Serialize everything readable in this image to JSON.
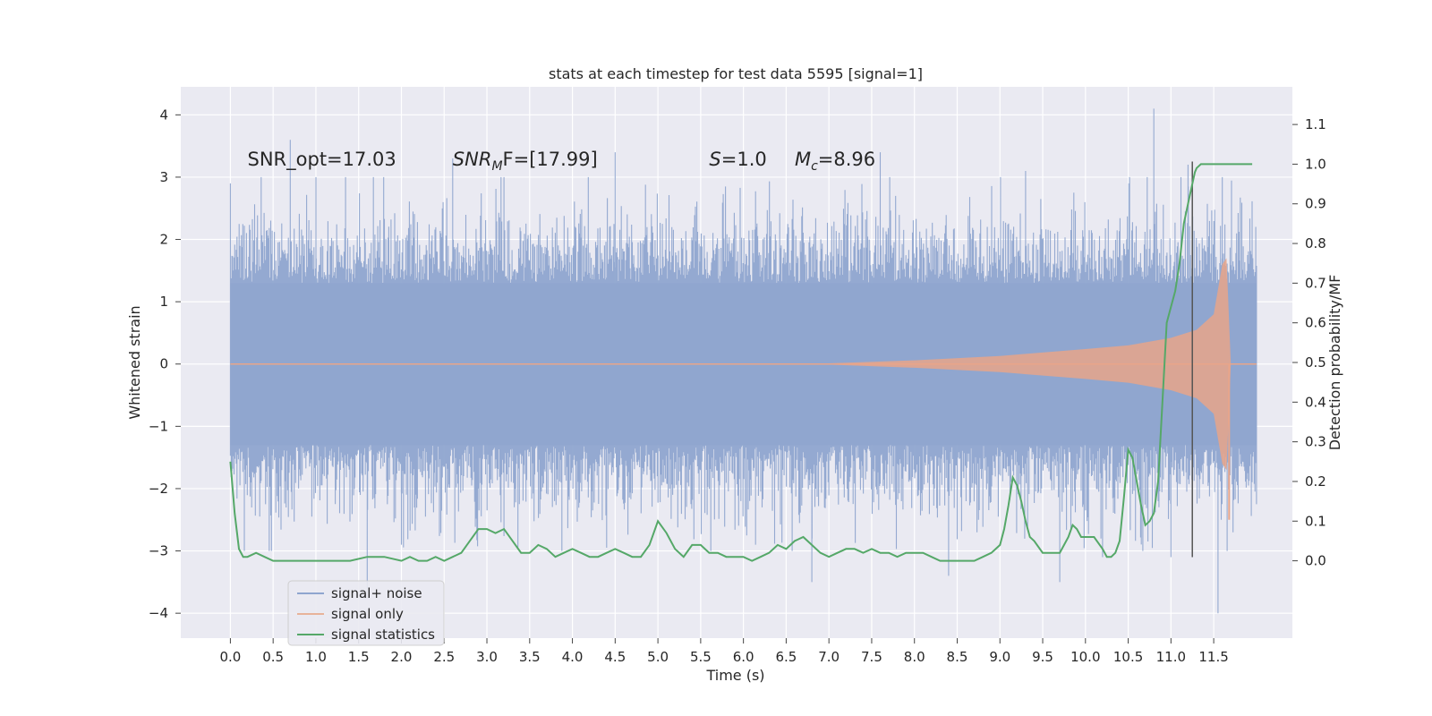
{
  "chart_data": {
    "type": "line",
    "title": "stats at each timestep for test data 5595 [signal=1]",
    "xlabel": "Time (s)",
    "ylabel_left": "Whitened strain",
    "ylabel_right": "Detection probability/MF",
    "xlim": [
      -0.58,
      12.42
    ],
    "ylim_left": [
      -4.4,
      4.45
    ],
    "ylim_right": [
      -0.195,
      1.195
    ],
    "xticks": [
      "0.0",
      "0.5",
      "1.0",
      "1.5",
      "2.0",
      "2.5",
      "3.0",
      "3.5",
      "4.0",
      "4.5",
      "5.0",
      "5.5",
      "6.0",
      "6.5",
      "7.0",
      "7.5",
      "8.0",
      "8.5",
      "9.0",
      "9.5",
      "10.0",
      "10.5",
      "11.0",
      "11.5"
    ],
    "yticks_left": [
      "4",
      "3",
      "2",
      "1",
      "0",
      "−1",
      "−2",
      "−3",
      "−4"
    ],
    "yticks_right": [
      "1.1",
      "1.0",
      "0.9",
      "0.8",
      "0.7",
      "0.6",
      "0.5",
      "0.4",
      "0.3",
      "0.2",
      "0.1",
      "0.0"
    ],
    "colors": {
      "noise": "#8fa5cf",
      "signal": "#dd8452",
      "stats": "#55a868",
      "marker": "#555555",
      "bg": "#eaeaf2",
      "grid": "#ffffff"
    },
    "annotations": [
      {
        "label": "SNR_opt=17.03",
        "x": 0.2,
        "y": 3.3
      },
      {
        "prefix": "SNR",
        "sub": "M",
        "suffix": "F=[17.99]",
        "x": 2.6,
        "y": 3.3
      },
      {
        "prefix": "S",
        "suffix": "=1.0",
        "x": 5.6,
        "y": 3.3
      },
      {
        "prefix": "M",
        "sub": "c",
        "suffix": "=8.96",
        "x": 6.6,
        "y": 3.3
      }
    ],
    "series": [
      {
        "name": "signal+ noise",
        "axis": "left",
        "description": "whitened strain noise, roughly +-1.3 core band with spikes up to +-4",
        "x_range": [
          0.0,
          12.0
        ],
        "core_amplitude": 1.3,
        "peaks_up": [
          [
            0.0,
            2.9
          ],
          [
            0.7,
            3.6
          ],
          [
            1.0,
            3.0
          ],
          [
            2.6,
            3.3
          ],
          [
            4.5,
            3.4
          ],
          [
            7.6,
            3.4
          ],
          [
            9.3,
            3.1
          ],
          [
            10.8,
            4.1
          ],
          [
            11.2,
            3.2
          ],
          [
            11.6,
            3.0
          ]
        ],
        "peaks_down": [
          [
            1.6,
            -3.6
          ],
          [
            2.0,
            -2.9
          ],
          [
            6.8,
            -3.5
          ],
          [
            8.4,
            -3.4
          ],
          [
            9.7,
            -3.5
          ],
          [
            10.2,
            -3.1
          ],
          [
            11.0,
            -3.1
          ],
          [
            11.55,
            -4.0
          ]
        ]
      },
      {
        "name": "signal only",
        "axis": "left",
        "description": "chirp whose envelope grows toward merger",
        "envelope": [
          [
            0.0,
            0.0
          ],
          [
            7.0,
            0.01
          ],
          [
            8.0,
            0.06
          ],
          [
            9.0,
            0.13
          ],
          [
            10.0,
            0.24
          ],
          [
            10.5,
            0.3
          ],
          [
            11.0,
            0.42
          ],
          [
            11.3,
            0.55
          ],
          [
            11.5,
            0.8
          ],
          [
            11.6,
            1.6
          ],
          [
            11.65,
            1.7
          ],
          [
            11.7,
            0.0
          ],
          [
            12.0,
            0.0
          ]
        ]
      },
      {
        "name": "signal statistics",
        "axis": "right",
        "x": [
          0.0,
          0.05,
          0.1,
          0.15,
          0.2,
          0.3,
          0.4,
          0.5,
          0.6,
          0.8,
          1.0,
          1.2,
          1.4,
          1.6,
          1.8,
          2.0,
          2.1,
          2.2,
          2.3,
          2.4,
          2.5,
          2.6,
          2.7,
          2.8,
          2.9,
          3.0,
          3.1,
          3.2,
          3.3,
          3.4,
          3.5,
          3.6,
          3.7,
          3.8,
          3.9,
          4.0,
          4.1,
          4.2,
          4.3,
          4.4,
          4.5,
          4.6,
          4.7,
          4.8,
          4.9,
          5.0,
          5.1,
          5.2,
          5.3,
          5.4,
          5.5,
          5.6,
          5.7,
          5.8,
          5.9,
          6.0,
          6.1,
          6.2,
          6.3,
          6.4,
          6.5,
          6.6,
          6.7,
          6.8,
          6.9,
          7.0,
          7.1,
          7.2,
          7.3,
          7.4,
          7.5,
          7.6,
          7.7,
          7.8,
          7.9,
          8.0,
          8.1,
          8.2,
          8.3,
          8.4,
          8.5,
          8.6,
          8.7,
          8.8,
          8.9,
          9.0,
          9.05,
          9.1,
          9.15,
          9.2,
          9.25,
          9.3,
          9.35,
          9.4,
          9.5,
          9.6,
          9.7,
          9.75,
          9.8,
          9.85,
          9.9,
          9.95,
          10.0,
          10.1,
          10.2,
          10.25,
          10.3,
          10.35,
          10.4,
          10.45,
          10.5,
          10.55,
          10.6,
          10.65,
          10.7,
          10.75,
          10.8,
          10.85,
          10.9,
          10.95,
          11.0,
          11.05,
          11.1,
          11.15,
          11.2,
          11.25,
          11.28,
          11.3,
          11.35,
          11.4,
          11.45,
          11.5,
          11.6,
          11.7,
          11.8,
          11.9,
          11.95
        ],
        "values": [
          0.25,
          0.12,
          0.03,
          0.01,
          0.01,
          0.02,
          0.01,
          0.0,
          0.0,
          0.0,
          0.0,
          0.0,
          0.0,
          0.01,
          0.01,
          0.0,
          0.01,
          0.0,
          0.0,
          0.01,
          0.0,
          0.01,
          0.02,
          0.05,
          0.08,
          0.08,
          0.07,
          0.08,
          0.05,
          0.02,
          0.02,
          0.04,
          0.03,
          0.01,
          0.02,
          0.03,
          0.02,
          0.01,
          0.01,
          0.02,
          0.03,
          0.02,
          0.01,
          0.01,
          0.04,
          0.1,
          0.07,
          0.03,
          0.01,
          0.04,
          0.04,
          0.02,
          0.02,
          0.01,
          0.01,
          0.01,
          0.0,
          0.01,
          0.02,
          0.04,
          0.03,
          0.05,
          0.06,
          0.04,
          0.02,
          0.01,
          0.02,
          0.03,
          0.03,
          0.02,
          0.03,
          0.02,
          0.02,
          0.01,
          0.02,
          0.02,
          0.02,
          0.01,
          0.0,
          0.0,
          0.0,
          0.0,
          0.0,
          0.01,
          0.02,
          0.04,
          0.08,
          0.14,
          0.21,
          0.19,
          0.15,
          0.1,
          0.06,
          0.05,
          0.02,
          0.02,
          0.02,
          0.04,
          0.06,
          0.09,
          0.08,
          0.06,
          0.06,
          0.06,
          0.03,
          0.01,
          0.01,
          0.02,
          0.05,
          0.16,
          0.28,
          0.26,
          0.2,
          0.14,
          0.09,
          0.1,
          0.12,
          0.2,
          0.4,
          0.6,
          0.64,
          0.68,
          0.75,
          0.85,
          0.9,
          0.95,
          0.98,
          0.99,
          1.0,
          1.0,
          1.0,
          1.0,
          1.0,
          1.0,
          1.0,
          1.0,
          1.0
        ]
      }
    ],
    "marker_line": {
      "x": 11.25,
      "y_top": 3.25,
      "y_bottom": -3.1
    },
    "legend": {
      "position": "lower-left",
      "items": [
        {
          "label": "signal+ noise",
          "color": "#8fa5cf"
        },
        {
          "label": "signal only",
          "color": "#dd8452"
        },
        {
          "label": "signal statistics",
          "color": "#55a868"
        }
      ]
    }
  }
}
